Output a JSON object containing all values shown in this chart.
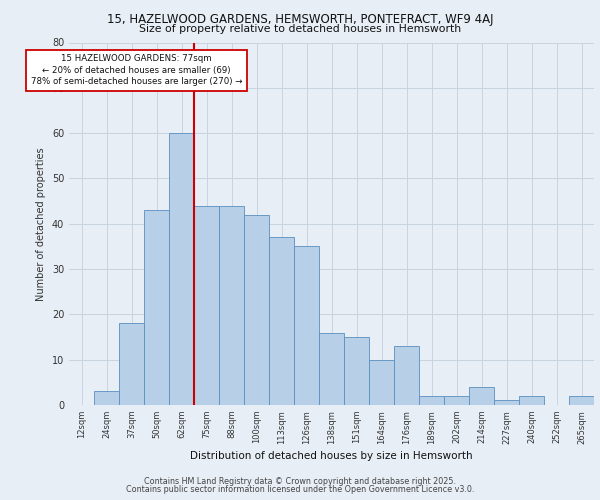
{
  "title1": "15, HAZELWOOD GARDENS, HEMSWORTH, PONTEFRACT, WF9 4AJ",
  "title2": "Size of property relative to detached houses in Hemsworth",
  "xlabel": "Distribution of detached houses by size in Hemsworth",
  "ylabel": "Number of detached properties",
  "categories": [
    "12sqm",
    "24sqm",
    "37sqm",
    "50sqm",
    "62sqm",
    "75sqm",
    "88sqm",
    "100sqm",
    "113sqm",
    "126sqm",
    "138sqm",
    "151sqm",
    "164sqm",
    "176sqm",
    "189sqm",
    "202sqm",
    "214sqm",
    "227sqm",
    "240sqm",
    "252sqm",
    "265sqm"
  ],
  "values": [
    0,
    3,
    18,
    43,
    60,
    44,
    44,
    42,
    37,
    35,
    16,
    15,
    10,
    13,
    2,
    2,
    4,
    1,
    2,
    0,
    2
  ],
  "bar_color": "#b8cfe8",
  "bar_edge_color": "#5a8fc0",
  "annotation_text": "15 HAZELWOOD GARDENS: 77sqm\n← 20% of detached houses are smaller (69)\n78% of semi-detached houses are larger (270) →",
  "annotation_box_color": "#ffffff",
  "annotation_box_edge_color": "#cc0000",
  "vline_color": "#cc0000",
  "vline_index": 5,
  "grid_color": "#c8d4e0",
  "background_color": "#e8eef6",
  "ylim": [
    0,
    80
  ],
  "yticks": [
    0,
    10,
    20,
    30,
    40,
    50,
    60,
    70,
    80
  ],
  "footer1": "Contains HM Land Registry data © Crown copyright and database right 2025.",
  "footer2": "Contains public sector information licensed under the Open Government Licence v3.0."
}
